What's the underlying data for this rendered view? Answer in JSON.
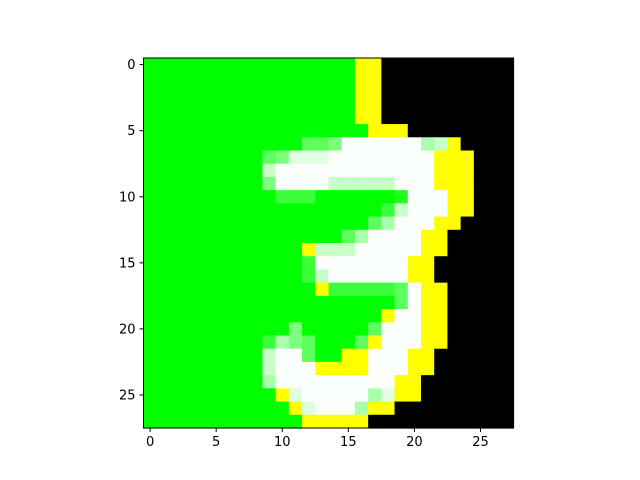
{
  "chart_data": {
    "type": "heatmap",
    "title": "",
    "xlabel": "",
    "ylabel": "",
    "rows": 28,
    "cols": 28,
    "xlim": [
      -0.5,
      27.5
    ],
    "ylim": [
      27.5,
      -0.5
    ],
    "xticks": [
      0,
      5,
      10,
      15,
      20,
      25
    ],
    "yticks": [
      0,
      5,
      10,
      15,
      20,
      25
    ],
    "xtick_labels": [
      "0",
      "5",
      "10",
      "15",
      "20",
      "25"
    ],
    "ytick_labels": [
      "0",
      "5",
      "10",
      "15",
      "20",
      "25"
    ],
    "grid": false,
    "legend": "none",
    "palette": {
      "G": "#00ff00",
      "K": "#000000",
      "Y": "#ffff00",
      "W": "#fbfffb",
      "P": "#e0ffe0",
      "L": "#c8ffc8",
      "A": "#aaffaa",
      "M": "#7dff7d",
      "N": "#5cff5c",
      "D": "#3cff3c",
      "E": "#1eff1e"
    },
    "pixels": [
      "GGGGGGGGGGGGGGGGYYKKKKKKKKKK",
      "GGGGGGGGGGGGGGGGYYKKKKKKKKKK",
      "GGGGGGGGGGGGGGGGYYKKKKKKKKKK",
      "GGGGGGGGGGGGGGGGYYKKKKKKKKKK",
      "GGGGGGGGGGGGGGGGYYKKKKKKKKKK",
      "GGGGGGGGGGGGGGGGGYYYKKKKKKKK",
      "GGGGGGGGGGGGNNMWWWWWWALYKKKK",
      "GGGGGGGGGNMPPPWWWWWWWWYYYKKK",
      "GGGGGGGGGLWWWWWWWWWWWWYYYKKK",
      "GGGGGGGGGMWWWWLLLLLWWWYYYKKK",
      "GGGGGGGGGGDDDGGGGGGEWWWYYKKK",
      "GGGGGGGGGGGGGGGGGGDLWWWYYKKK",
      "GGGGGGGGGGGGGGGGGNAWWWYYKKKK",
      "GGGGGGGGGGGGGGGNAWWWWYYKKKKK",
      "GGGGGGGGGGGGYLLLWWWWWYYKKKKK",
      "GGGGGGGGGGGGDWWWWWWWYYKKKKKK",
      "GGGGGGGGGGGGDLWWWWWWYYKKKKKK",
      "GGGGGGGGGGGGGYDDDDDNWYYKKKKK",
      "GGGGGGGGGGGGGGGGGGGNWYYKKKKK",
      "GGGGGGGGGGGGGGGGGGYWWYYKKKKK",
      "GGGGGGGGGGGMGGGGGNWWWYYKKKKK",
      "GGGGGGGGGDAMNGGGNYWWWYYKKKKK",
      "GGGGGGGGGLWWNGGYYWWWYYKKKKKK",
      "GGGGGGGGGLWWWYYYYWWWYYKKKKKK",
      "GGGGGGGGGAWWWWWWWWWYYKKKKKKK",
      "GGGGGGGGGGYPWWWWWAPYYKKKKKKK",
      "GGGGGGGGGGGYPWWWAYYKKKKKKKKK",
      "GGGGGGGGGGGGYYYYYKKKKKKKKKKK"
    ]
  }
}
